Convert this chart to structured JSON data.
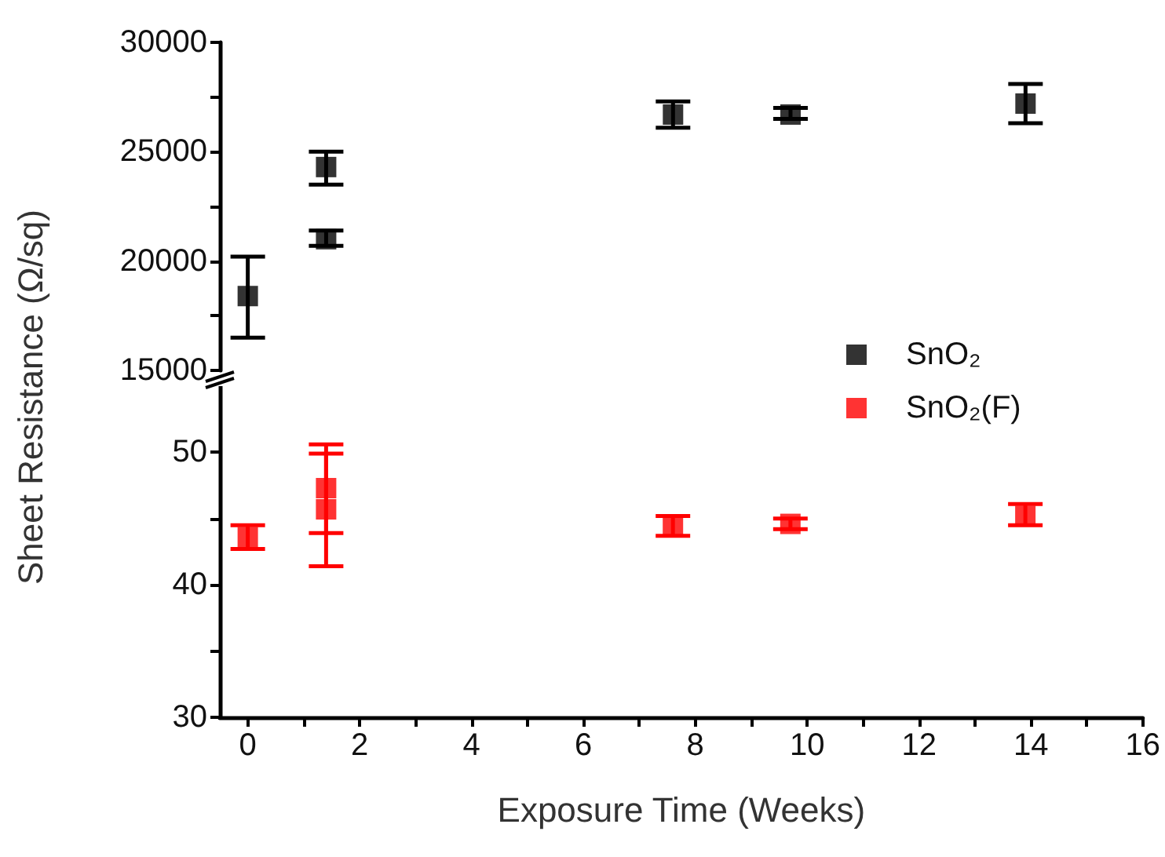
{
  "chart_data": [
    {
      "type": "scatter",
      "ylabel": "Sheet Resistance (Ω/sq)",
      "xlim": [
        -0.5,
        16
      ],
      "ylim": [
        15000,
        30000
      ],
      "yticks": [
        15000,
        {
          "value": 17500,
          "label": null
        },
        20000,
        {
          "value": 22500,
          "label": null
        },
        25000,
        {
          "value": 27500,
          "label": null
        },
        30000
      ],
      "tick_labels": "y",
      "grid": false,
      "marker": "square",
      "legend": "bottom right",
      "series": [
        {
          "name": "SnO₂",
          "color": "#000000",
          "x": [
            0,
            1.4,
            1.4,
            7.6,
            9.7,
            13.9
          ],
          "values": [
            18400,
            24300,
            21000,
            26700,
            26700,
            27200
          ],
          "errors": [
            [
              16500,
              20200
            ],
            [
              23500,
              25000
            ],
            [
              20700,
              21400
            ],
            [
              26100,
              27300
            ],
            [
              26500,
              27000
            ],
            [
              26300,
              28100
            ]
          ]
        }
      ]
    },
    {
      "type": "scatter",
      "xlabel": "Exposure Time (Weeks)",
      "xlim": [
        -0.5,
        16
      ],
      "ylim": [
        30,
        55
      ],
      "xticks": [
        0,
        {
          "value": 1,
          "label": null
        },
        2,
        {
          "value": 3,
          "label": null
        },
        4,
        {
          "value": 5,
          "label": null
        },
        6,
        {
          "value": 7,
          "label": null
        },
        8,
        {
          "value": 9,
          "label": null
        },
        10,
        {
          "value": 11,
          "label": null
        },
        12,
        {
          "value": 13,
          "label": null
        },
        14,
        {
          "value": 15,
          "label": null
        },
        16
      ],
      "yticks": [
        30,
        {
          "value": 35,
          "label": null
        },
        40,
        {
          "value": 45,
          "label": null
        },
        50
      ],
      "grid": false,
      "marker": "square",
      "legend": "top right",
      "series": [
        {
          "name": "SnO₂(F)",
          "color": "#ff0000",
          "x": [
            0,
            1.4,
            1.4,
            7.6,
            9.7,
            13.9
          ],
          "values": [
            43.6,
            47.3,
            45.7,
            44.4,
            44.6,
            45.2
          ],
          "errors": [
            [
              42.7,
              44.5
            ],
            [
              43.9,
              50.6
            ],
            [
              41.4,
              49.9
            ],
            [
              43.7,
              45.2
            ],
            [
              44.2,
              45
            ],
            [
              44.5,
              46.1
            ]
          ]
        }
      ]
    }
  ]
}
